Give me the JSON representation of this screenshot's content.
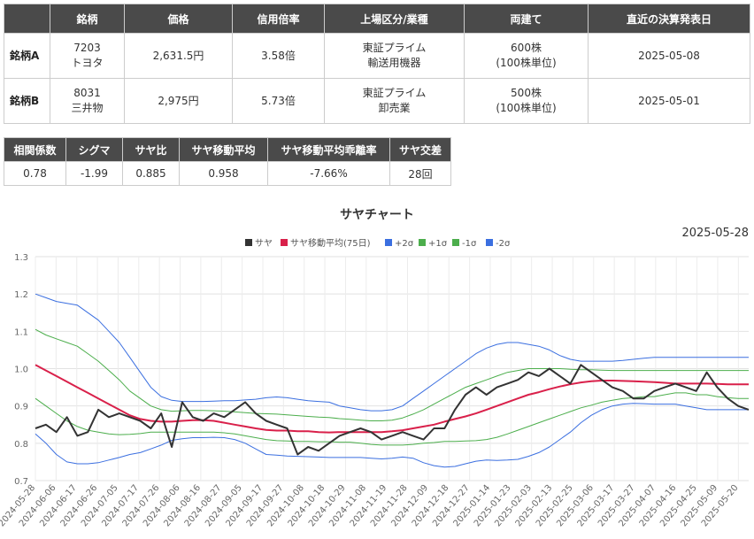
{
  "stock_table": {
    "headers": [
      "",
      "銘柄",
      "価格",
      "信用倍率",
      "上場区分/業種",
      "両建て",
      "直近の決算発表日"
    ],
    "rows": [
      {
        "label": "銘柄A",
        "code": "7203",
        "name": "トヨタ",
        "price": "2,631.5円",
        "ratio": "3.58倍",
        "market": "東証プライム",
        "industry": "輸送用機器",
        "shares": "600株",
        "unit": "(100株単位)",
        "date": "2025-05-08"
      },
      {
        "label": "銘柄B",
        "code": "8031",
        "name": "三井物",
        "price": "2,975円",
        "ratio": "5.73倍",
        "market": "東証プライム",
        "industry": "卸売業",
        "shares": "500株",
        "unit": "(100株単位)",
        "date": "2025-05-01"
      }
    ]
  },
  "stats": {
    "headers": [
      "相関係数",
      "シグマ",
      "サヤ比",
      "サヤ移動平均",
      "サヤ移動平均乖離率",
      "サヤ交差"
    ],
    "values": [
      "0.78",
      "-1.99",
      "0.885",
      "0.958",
      "-7.66%",
      "28回"
    ]
  },
  "chart_data": {
    "type": "line",
    "title": "サヤチャート",
    "date_label": "2025-05-28",
    "ylim": [
      0.7,
      1.3
    ],
    "y_ticks": [
      "0.7",
      "0.8",
      "0.9",
      "1.0",
      "1.1",
      "1.2",
      "1.3"
    ],
    "x_labels": [
      "2024-05-28",
      "2024-06-06",
      "2024-06-17",
      "2024-06-26",
      "2024-07-05",
      "2024-07-17",
      "2024-07-26",
      "2024-08-06",
      "2024-08-16",
      "2024-08-27",
      "2024-09-05",
      "2024-09-17",
      "2024-09-27",
      "2024-10-08",
      "2024-10-18",
      "2024-10-29",
      "2024-11-08",
      "2024-11-19",
      "2024-11-28",
      "2024-12-09",
      "2024-12-18",
      "2024-12-27",
      "2025-01-14",
      "2025-01-23",
      "2025-02-03",
      "2025-02-13",
      "2025-02-25",
      "2025-03-06",
      "2025-03-17",
      "2025-03-27",
      "2025-04-07",
      "2025-04-16",
      "2025-04-25",
      "2025-05-09",
      "2025-05-20"
    ],
    "grid": true,
    "legend_position": "top",
    "series": [
      {
        "name": "サヤ",
        "color": "#333333",
        "values": [
          0.84,
          0.85,
          0.83,
          0.87,
          0.82,
          0.83,
          0.89,
          0.87,
          0.88,
          0.87,
          0.86,
          0.84,
          0.88,
          0.79,
          0.91,
          0.87,
          0.86,
          0.88,
          0.87,
          0.89,
          0.91,
          0.88,
          0.86,
          0.85,
          0.84,
          0.77,
          0.79,
          0.78,
          0.8,
          0.82,
          0.83,
          0.84,
          0.83,
          0.81,
          0.82,
          0.83,
          0.82,
          0.81,
          0.84,
          0.84,
          0.89,
          0.93,
          0.95,
          0.93,
          0.95,
          0.96,
          0.97,
          0.99,
          0.98,
          1.0,
          0.98,
          0.96,
          1.01,
          0.99,
          0.97,
          0.95,
          0.94,
          0.92,
          0.92,
          0.94,
          0.95,
          0.96,
          0.95,
          0.94,
          0.99,
          0.95,
          0.92,
          0.9,
          0.89
        ]
      },
      {
        "name": "サヤ移動平均(75日)",
        "color": "#d9204a",
        "values": [
          1.01,
          0.995,
          0.98,
          0.965,
          0.95,
          0.935,
          0.92,
          0.905,
          0.89,
          0.875,
          0.865,
          0.86,
          0.858,
          0.858,
          0.86,
          0.862,
          0.862,
          0.86,
          0.855,
          0.85,
          0.845,
          0.84,
          0.836,
          0.834,
          0.834,
          0.832,
          0.832,
          0.83,
          0.829,
          0.83,
          0.83,
          0.83,
          0.83,
          0.83,
          0.832,
          0.835,
          0.84,
          0.845,
          0.85,
          0.858,
          0.865,
          0.872,
          0.88,
          0.89,
          0.9,
          0.91,
          0.92,
          0.93,
          0.937,
          0.945,
          0.952,
          0.958,
          0.963,
          0.966,
          0.968,
          0.968,
          0.967,
          0.966,
          0.965,
          0.964,
          0.962,
          0.96,
          0.96,
          0.96,
          0.96,
          0.959,
          0.958,
          0.958,
          0.958
        ]
      },
      {
        "name": "+2σ",
        "color": "#3b6fe0",
        "values": [
          1.2,
          1.19,
          1.18,
          1.175,
          1.17,
          1.15,
          1.13,
          1.1,
          1.07,
          1.03,
          0.99,
          0.95,
          0.925,
          0.915,
          0.912,
          0.912,
          0.912,
          0.913,
          0.914,
          0.914,
          0.916,
          0.918,
          0.922,
          0.924,
          0.922,
          0.918,
          0.914,
          0.912,
          0.91,
          0.9,
          0.895,
          0.89,
          0.887,
          0.887,
          0.89,
          0.9,
          0.92,
          0.94,
          0.96,
          0.98,
          1.0,
          1.02,
          1.04,
          1.055,
          1.065,
          1.07,
          1.07,
          1.065,
          1.06,
          1.05,
          1.035,
          1.025,
          1.02,
          1.02,
          1.02,
          1.02,
          1.022,
          1.025,
          1.028,
          1.03,
          1.03,
          1.03,
          1.03,
          1.03,
          1.03,
          1.03,
          1.03,
          1.03,
          1.03
        ]
      },
      {
        "name": "+1σ",
        "color": "#4cae4c",
        "values": [
          1.105,
          1.09,
          1.08,
          1.07,
          1.06,
          1.04,
          1.02,
          0.995,
          0.97,
          0.94,
          0.92,
          0.9,
          0.89,
          0.886,
          0.887,
          0.888,
          0.888,
          0.887,
          0.886,
          0.884,
          0.882,
          0.88,
          0.879,
          0.878,
          0.876,
          0.874,
          0.872,
          0.87,
          0.869,
          0.866,
          0.864,
          0.862,
          0.86,
          0.86,
          0.862,
          0.868,
          0.878,
          0.89,
          0.905,
          0.92,
          0.935,
          0.95,
          0.96,
          0.97,
          0.98,
          0.99,
          0.995,
          1.0,
          1.0,
          1.0,
          1.0,
          0.998,
          0.997,
          0.997,
          0.996,
          0.995,
          0.995,
          0.995,
          0.995,
          0.995,
          0.995,
          0.995,
          0.995,
          0.995,
          0.995,
          0.995,
          0.995,
          0.995,
          0.995
        ]
      },
      {
        "name": "-1σ",
        "color": "#4cae4c",
        "values": [
          0.92,
          0.9,
          0.88,
          0.86,
          0.845,
          0.835,
          0.83,
          0.825,
          0.823,
          0.824,
          0.826,
          0.83,
          0.83,
          0.83,
          0.83,
          0.83,
          0.83,
          0.83,
          0.828,
          0.825,
          0.82,
          0.815,
          0.81,
          0.807,
          0.806,
          0.805,
          0.805,
          0.804,
          0.804,
          0.803,
          0.803,
          0.8,
          0.797,
          0.795,
          0.795,
          0.795,
          0.797,
          0.8,
          0.802,
          0.805,
          0.805,
          0.806,
          0.807,
          0.81,
          0.816,
          0.825,
          0.835,
          0.845,
          0.855,
          0.865,
          0.875,
          0.885,
          0.895,
          0.902,
          0.91,
          0.915,
          0.92,
          0.922,
          0.925,
          0.925,
          0.93,
          0.935,
          0.935,
          0.93,
          0.93,
          0.925,
          0.922,
          0.92,
          0.92
        ]
      },
      {
        "name": "-2σ",
        "color": "#3b6fe0",
        "values": [
          0.825,
          0.8,
          0.77,
          0.75,
          0.745,
          0.745,
          0.748,
          0.755,
          0.762,
          0.77,
          0.775,
          0.785,
          0.795,
          0.808,
          0.812,
          0.815,
          0.815,
          0.816,
          0.815,
          0.81,
          0.8,
          0.785,
          0.77,
          0.768,
          0.766,
          0.765,
          0.764,
          0.763,
          0.762,
          0.762,
          0.762,
          0.762,
          0.76,
          0.758,
          0.76,
          0.763,
          0.76,
          0.748,
          0.74,
          0.736,
          0.738,
          0.745,
          0.752,
          0.755,
          0.754,
          0.755,
          0.757,
          0.765,
          0.775,
          0.79,
          0.81,
          0.83,
          0.855,
          0.875,
          0.89,
          0.9,
          0.905,
          0.907,
          0.906,
          0.905,
          0.905,
          0.905,
          0.9,
          0.895,
          0.89,
          0.89,
          0.89,
          0.89,
          0.89
        ]
      }
    ]
  }
}
